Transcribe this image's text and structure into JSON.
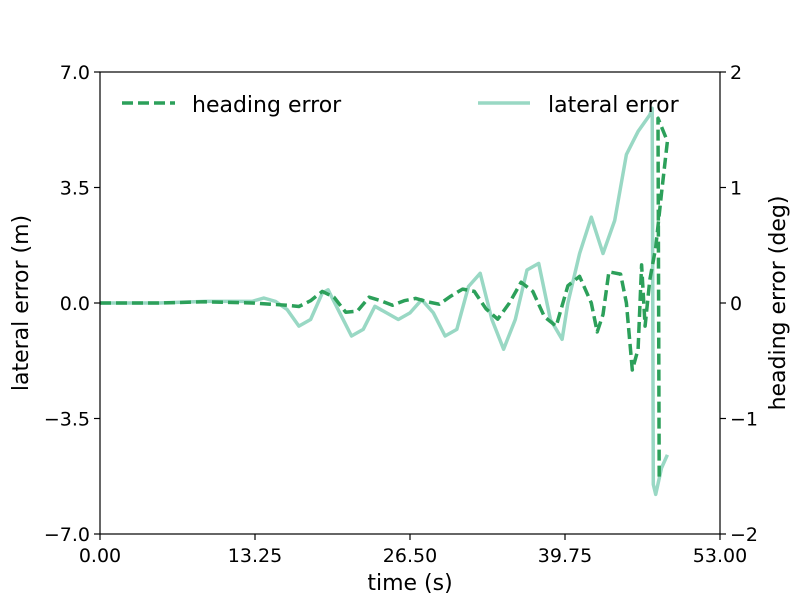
{
  "chart_data": {
    "type": "line",
    "xlabel": "time (s)",
    "ylabel": "lateral error (m)",
    "y2label": "heading error (deg)",
    "xlim": [
      0,
      53
    ],
    "ylim": [
      -7,
      7
    ],
    "y2lim": [
      -2,
      2
    ],
    "x_ticks": [
      "0.00",
      "13.25",
      "26.50",
      "39.75",
      "53.00"
    ],
    "y_ticks": [
      "7.0",
      "3.5",
      "0.0",
      "−3.5",
      "−7.0"
    ],
    "y2_ticks": [
      "2",
      "1",
      "0",
      "−1",
      "−2"
    ],
    "legend": {
      "placement": "top"
    },
    "series": [
      {
        "name": "heading error",
        "axis": "right",
        "style": "dashed",
        "color": "#2ca05a",
        "points": [
          [
            0,
            0
          ],
          [
            5,
            0
          ],
          [
            9,
            0.01
          ],
          [
            13,
            0
          ],
          [
            16,
            -0.02
          ],
          [
            17,
            -0.03
          ],
          [
            18,
            0.02
          ],
          [
            19,
            0.1
          ],
          [
            20,
            0.05
          ],
          [
            21,
            -0.08
          ],
          [
            22,
            -0.07
          ],
          [
            23,
            0.05
          ],
          [
            24,
            0.02
          ],
          [
            25,
            -0.02
          ],
          [
            26,
            0.02
          ],
          [
            27,
            0.04
          ],
          [
            28,
            0.01
          ],
          [
            29,
            -0.01
          ],
          [
            30,
            0.06
          ],
          [
            31,
            0.12
          ],
          [
            32,
            0.1
          ],
          [
            33,
            -0.05
          ],
          [
            34,
            -0.14
          ],
          [
            35,
            0
          ],
          [
            36,
            0.18
          ],
          [
            37,
            0.1
          ],
          [
            38,
            -0.12
          ],
          [
            39,
            -0.2
          ],
          [
            40,
            0.15
          ],
          [
            41,
            0.23
          ],
          [
            42,
            0
          ],
          [
            42.5,
            -0.25
          ],
          [
            43,
            -0.1
          ],
          [
            43.5,
            0.27
          ],
          [
            44.5,
            0.25
          ],
          [
            45,
            0
          ],
          [
            45.5,
            -0.58
          ],
          [
            46,
            -0.4
          ],
          [
            46.3,
            0.33
          ],
          [
            46.6,
            -0.2
          ],
          [
            47,
            0.2
          ],
          [
            47.5,
            0.48
          ],
          [
            48,
            0.95
          ],
          [
            48.5,
            1.4
          ],
          [
            47.7,
            1.6
          ],
          [
            47.8,
            -1.51
          ]
        ]
      },
      {
        "name": "lateral error",
        "axis": "left",
        "style": "solid",
        "color": "#99d8c4",
        "points": [
          [
            0,
            0
          ],
          [
            5,
            0
          ],
          [
            9,
            0.05
          ],
          [
            13,
            0.05
          ],
          [
            14,
            0.15
          ],
          [
            15,
            0.05
          ],
          [
            16,
            -0.2
          ],
          [
            17,
            -0.7
          ],
          [
            18,
            -0.5
          ],
          [
            19,
            0.3
          ],
          [
            19.5,
            0.4
          ],
          [
            20.5,
            -0.3
          ],
          [
            21.5,
            -1.0
          ],
          [
            22.5,
            -0.8
          ],
          [
            23.5,
            -0.1
          ],
          [
            24.5,
            -0.3
          ],
          [
            25.5,
            -0.5
          ],
          [
            26.5,
            -0.3
          ],
          [
            27.5,
            0.1
          ],
          [
            28.5,
            -0.3
          ],
          [
            29.5,
            -1.0
          ],
          [
            30.5,
            -0.8
          ],
          [
            31.5,
            0.5
          ],
          [
            32.5,
            0.9
          ],
          [
            33.5,
            -0.5
          ],
          [
            34.5,
            -1.4
          ],
          [
            35.5,
            -0.5
          ],
          [
            36.5,
            1.0
          ],
          [
            37.5,
            1.2
          ],
          [
            38.5,
            -0.5
          ],
          [
            39.5,
            -1.1
          ],
          [
            40,
            0
          ],
          [
            41,
            1.5
          ],
          [
            42,
            2.6
          ],
          [
            43,
            1.5
          ],
          [
            44,
            2.5
          ],
          [
            45,
            4.5
          ],
          [
            46,
            5.2
          ],
          [
            47,
            5.7
          ],
          [
            47.2,
            5.9
          ],
          [
            47.3,
            -5.5
          ],
          [
            47.5,
            -5.8
          ],
          [
            48,
            -5.0
          ],
          [
            48.5,
            -4.6
          ]
        ]
      }
    ]
  }
}
